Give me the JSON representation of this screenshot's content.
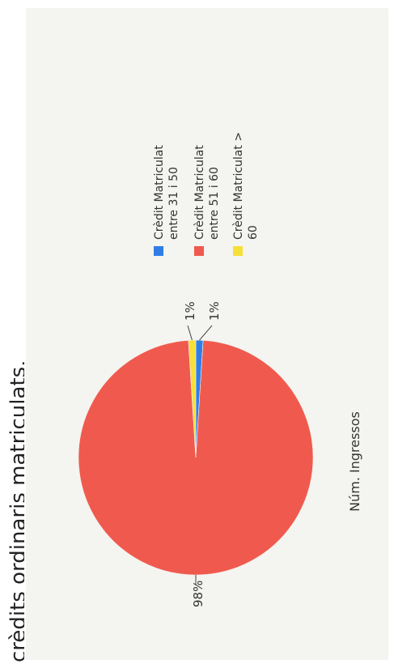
{
  "caption": "crèdits ordinaris matriculats.",
  "chart_data": {
    "type": "pie",
    "title": "",
    "xlabel": "Núm. Ingressos",
    "categories": [
      "Crèdit Matriculat entre 31 i 50",
      "Crèdit Matriculat entre 51 i 60",
      "Crèdit Matriculat > 60"
    ],
    "values": [
      1,
      98,
      1
    ],
    "data_labels": [
      "1%",
      "98%",
      "1%"
    ],
    "legend": {
      "placement": "right",
      "entries": [
        {
          "lines": [
            "Crèdit Matriculat",
            "entre  31 i 50"
          ],
          "color": "#2f7ee6"
        },
        {
          "lines": [
            "Crèdit Matriculat",
            "entre  51 i 60"
          ],
          "color": "#f05a4e"
        },
        {
          "lines": [
            "Crèdit Matriculat >",
            "60"
          ],
          "color": "#f7df3a"
        }
      ]
    },
    "colors": [
      "#2f7ee6",
      "#f05a4e",
      "#f7df3a"
    ],
    "rotated": "90deg counter-clockwise"
  }
}
